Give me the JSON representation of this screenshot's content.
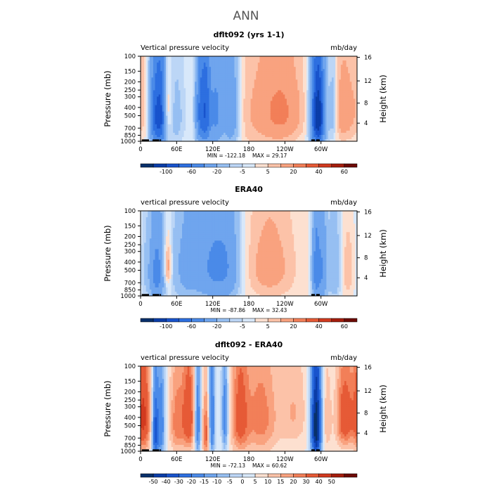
{
  "page_title": "ANN",
  "colors": {
    "bg": "#cfe6fa",
    "axis": "#000000",
    "topo": "#000000",
    "diverging": [
      "#08306b",
      "#0b3da8",
      "#1853cc",
      "#2d6fe0",
      "#4a8ae8",
      "#6fa5ee",
      "#96bff2",
      "#bcd6f6",
      "#d8e8fa",
      "#fde0d0",
      "#fcc2a8",
      "#f9a27f",
      "#f27f58",
      "#e65a36",
      "#d13a1f",
      "#a51d0d",
      "#6d0b05"
    ]
  },
  "chart_data": [
    {
      "type": "heatmap",
      "title": "dflt092 (yrs 1-1)",
      "left_label": "Vertical pressure velocity",
      "right_label": "mb/day",
      "ylabel": "Pressure (mb)",
      "ylabel_right": "Height (km)",
      "y_ticks": [
        "100",
        "150",
        "200",
        "250",
        "300",
        "400",
        "500",
        "700",
        "850",
        "1000"
      ],
      "y_right_ticks": [
        "16",
        "12",
        "8",
        "4"
      ],
      "x_ticks": [
        "0",
        "60E",
        "120E",
        "180",
        "120W",
        "60W"
      ],
      "min_label": "MIN = -122.18",
      "max_label": "MAX = 29.17",
      "colorbar_labels": [
        "-100",
        "-60",
        "-20",
        "-5",
        "5",
        "20",
        "40",
        "60"
      ],
      "colorbar_levels": [
        -120,
        -100,
        -80,
        -60,
        -40,
        -20,
        -10,
        -5,
        0,
        5,
        10,
        20,
        30,
        40,
        50,
        60,
        70
      ],
      "features": [
        {
          "lon": 5,
          "plev": 350,
          "amp": 5,
          "wl": 8,
          "wp": 320
        },
        {
          "lon": 25,
          "plev": 500,
          "amp": -75,
          "wl": 7,
          "wp": 420
        },
        {
          "lon": 35,
          "plev": 500,
          "amp": -55,
          "wl": 5,
          "wp": 420
        },
        {
          "lon": 45,
          "plev": 400,
          "amp": 14,
          "wl": 6,
          "wp": 220
        },
        {
          "lon": 58,
          "plev": 500,
          "amp": -14,
          "wl": 12,
          "wp": 420
        },
        {
          "lon": 100,
          "plev": 450,
          "amp": -65,
          "wl": 6,
          "wp": 420
        },
        {
          "lon": 110,
          "plev": 450,
          "amp": -55,
          "wl": 5,
          "wp": 420
        },
        {
          "lon": 125,
          "plev": 450,
          "amp": -45,
          "wl": 8,
          "wp": 420
        },
        {
          "lon": 150,
          "plev": 450,
          "amp": -40,
          "wl": 10,
          "wp": 450
        },
        {
          "lon": 185,
          "plev": 450,
          "amp": 8,
          "wl": 35,
          "wp": 500
        },
        {
          "lon": 235,
          "plev": 450,
          "amp": 20,
          "wl": 25,
          "wp": 350
        },
        {
          "lon": 295,
          "plev": 500,
          "amp": -120,
          "wl": 8,
          "wp": 420
        },
        {
          "lon": 338,
          "plev": 450,
          "amp": 16,
          "wl": 15,
          "wp": 350
        },
        {
          "lon": 320,
          "plev": 450,
          "amp": -20,
          "wl": 5,
          "wp": 350
        }
      ]
    },
    {
      "type": "heatmap",
      "title": "ERA40",
      "left_label": "vertical pressure velocity",
      "right_label": "mb/day",
      "ylabel": "Pressure (mb)",
      "ylabel_right": "Height (km)",
      "y_ticks": [
        "100",
        "150",
        "200",
        "250",
        "300",
        "400",
        "500",
        "700",
        "850",
        "1000"
      ],
      "y_right_ticks": [
        "16",
        "12",
        "8",
        "4"
      ],
      "x_ticks": [
        "0",
        "60E",
        "120E",
        "180",
        "120W",
        "60W"
      ],
      "min_label": "MIN = -87.86",
      "max_label": "MAX = 32.43",
      "colorbar_labels": [
        "-100",
        "-60",
        "-20",
        "-5",
        "5",
        "20",
        "40",
        "60"
      ],
      "colorbar_levels": [
        -120,
        -100,
        -80,
        -60,
        -40,
        -20,
        -10,
        -5,
        0,
        5,
        10,
        20,
        30,
        40,
        50,
        60,
        70
      ],
      "features": [
        {
          "lon": 12,
          "plev": 500,
          "amp": -12,
          "wl": 10,
          "wp": 400
        },
        {
          "lon": 28,
          "plev": 550,
          "amp": -45,
          "wl": 8,
          "wp": 420
        },
        {
          "lon": 45,
          "plev": 450,
          "amp": 22,
          "wl": 5,
          "wp": 200
        },
        {
          "lon": 80,
          "plev": 450,
          "amp": -28,
          "wl": 20,
          "wp": 450
        },
        {
          "lon": 118,
          "plev": 450,
          "amp": -32,
          "wl": 15,
          "wp": 450
        },
        {
          "lon": 145,
          "plev": 450,
          "amp": -35,
          "wl": 15,
          "wp": 450
        },
        {
          "lon": 215,
          "plev": 450,
          "amp": 14,
          "wl": 30,
          "wp": 400
        },
        {
          "lon": 292,
          "plev": 500,
          "amp": -50,
          "wl": 5,
          "wp": 450
        },
        {
          "lon": 303,
          "plev": 500,
          "amp": -35,
          "wl": 5,
          "wp": 450
        },
        {
          "lon": 322,
          "plev": 500,
          "amp": -20,
          "wl": 8,
          "wp": 400
        },
        {
          "lon": 345,
          "plev": 500,
          "amp": 10,
          "wl": 8,
          "wp": 300
        }
      ]
    },
    {
      "type": "heatmap",
      "title": "dflt092 - ERA40",
      "left_label": "vertical pressure velocity",
      "right_label": "mb/day",
      "ylabel": "Pressure (mb)",
      "ylabel_right": "Height (km)",
      "y_ticks": [
        "100",
        "150",
        "200",
        "250",
        "300",
        "400",
        "500",
        "700",
        "850",
        "1000"
      ],
      "y_right_ticks": [
        "16",
        "12",
        "8",
        "4"
      ],
      "x_ticks": [
        "0",
        "60E",
        "120E",
        "180",
        "120W",
        "60W"
      ],
      "min_label": "MIN = -72.13",
      "max_label": "MAX = 60.62",
      "colorbar_labels": [
        "-50",
        "-40",
        "-30",
        "-20",
        "-15",
        "-10",
        "-5",
        "0",
        "5",
        "10",
        "15",
        "20",
        "30",
        "40",
        "50"
      ],
      "colorbar_levels": [
        -60,
        -50,
        -40,
        -30,
        -20,
        -15,
        -10,
        -5,
        0,
        5,
        10,
        15,
        20,
        30,
        40,
        50,
        60
      ],
      "features": [
        {
          "lon": 5,
          "plev": 400,
          "amp": 32,
          "wl": 8,
          "wp": 350
        },
        {
          "lon": 25,
          "plev": 600,
          "amp": -45,
          "wl": 4,
          "wp": 400
        },
        {
          "lon": 35,
          "plev": 500,
          "amp": -25,
          "wl": 4,
          "wp": 450
        },
        {
          "lon": 60,
          "plev": 450,
          "amp": 18,
          "wl": 8,
          "wp": 350
        },
        {
          "lon": 80,
          "plev": 400,
          "amp": 28,
          "wl": 8,
          "wp": 350
        },
        {
          "lon": 95,
          "plev": 450,
          "amp": -30,
          "wl": 4,
          "wp": 450
        },
        {
          "lon": 110,
          "plev": 600,
          "amp": 25,
          "wl": 5,
          "wp": 350
        },
        {
          "lon": 118,
          "plev": 450,
          "amp": -35,
          "wl": 4,
          "wp": 450
        },
        {
          "lon": 140,
          "plev": 400,
          "amp": -25,
          "wl": 4,
          "wp": 400
        },
        {
          "lon": 165,
          "plev": 400,
          "amp": 22,
          "wl": 10,
          "wp": 400
        },
        {
          "lon": 200,
          "plev": 400,
          "amp": 18,
          "wl": 20,
          "wp": 400
        },
        {
          "lon": 255,
          "plev": 350,
          "amp": 10,
          "wl": 15,
          "wp": 300
        },
        {
          "lon": 292,
          "plev": 500,
          "amp": -70,
          "wl": 6,
          "wp": 450
        },
        {
          "lon": 310,
          "plev": 450,
          "amp": 10,
          "wl": 5,
          "wp": 300
        },
        {
          "lon": 340,
          "plev": 400,
          "amp": 28,
          "wl": 10,
          "wp": 300
        }
      ]
    }
  ]
}
